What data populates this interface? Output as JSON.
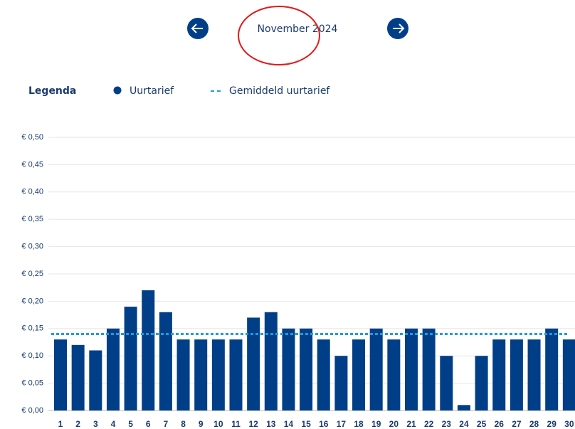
{
  "header": {
    "title": "November 2024"
  },
  "legend": {
    "title": "Legenda"
  },
  "chart_data": {
    "type": "bar",
    "categories": [
      "1",
      "2",
      "3",
      "4",
      "5",
      "6",
      "7",
      "8",
      "9",
      "10",
      "11",
      "12",
      "13",
      "14",
      "15",
      "16",
      "17",
      "18",
      "19",
      "20",
      "21",
      "22",
      "23",
      "24",
      "25",
      "26",
      "27",
      "28",
      "29",
      "30"
    ],
    "series": [
      {
        "name": "Uurtarief",
        "color": "#003f87",
        "values": [
          0.13,
          0.12,
          0.11,
          0.15,
          0.19,
          0.22,
          0.18,
          0.13,
          0.13,
          0.13,
          0.13,
          0.17,
          0.18,
          0.15,
          0.15,
          0.13,
          0.1,
          0.13,
          0.15,
          0.13,
          0.15,
          0.15,
          0.1,
          0.01,
          0.1,
          0.13,
          0.13,
          0.13,
          0.15,
          0.13
        ]
      }
    ],
    "average": {
      "name": "Gemiddeld uurtarief",
      "color": "#1e9be0",
      "value": 0.14
    },
    "ylim": [
      0,
      0.5
    ],
    "yticks": [
      {
        "value": 0,
        "label": "€ 0,00"
      },
      {
        "value": 0.05,
        "label": "€ 0,05"
      },
      {
        "value": 0.1,
        "label": "€ 0,10"
      },
      {
        "value": 0.15,
        "label": "€ 0,15"
      },
      {
        "value": 0.2,
        "label": "€ 0,20"
      },
      {
        "value": 0.25,
        "label": "€ 0,25"
      },
      {
        "value": 0.3,
        "label": "€ 0,30"
      },
      {
        "value": 0.35,
        "label": "€ 0,35"
      },
      {
        "value": 0.4,
        "label": "€ 0,40"
      },
      {
        "value": 0.45,
        "label": "€ 0,45"
      },
      {
        "value": 0.5,
        "label": "€ 0,50"
      }
    ],
    "grid": true
  }
}
